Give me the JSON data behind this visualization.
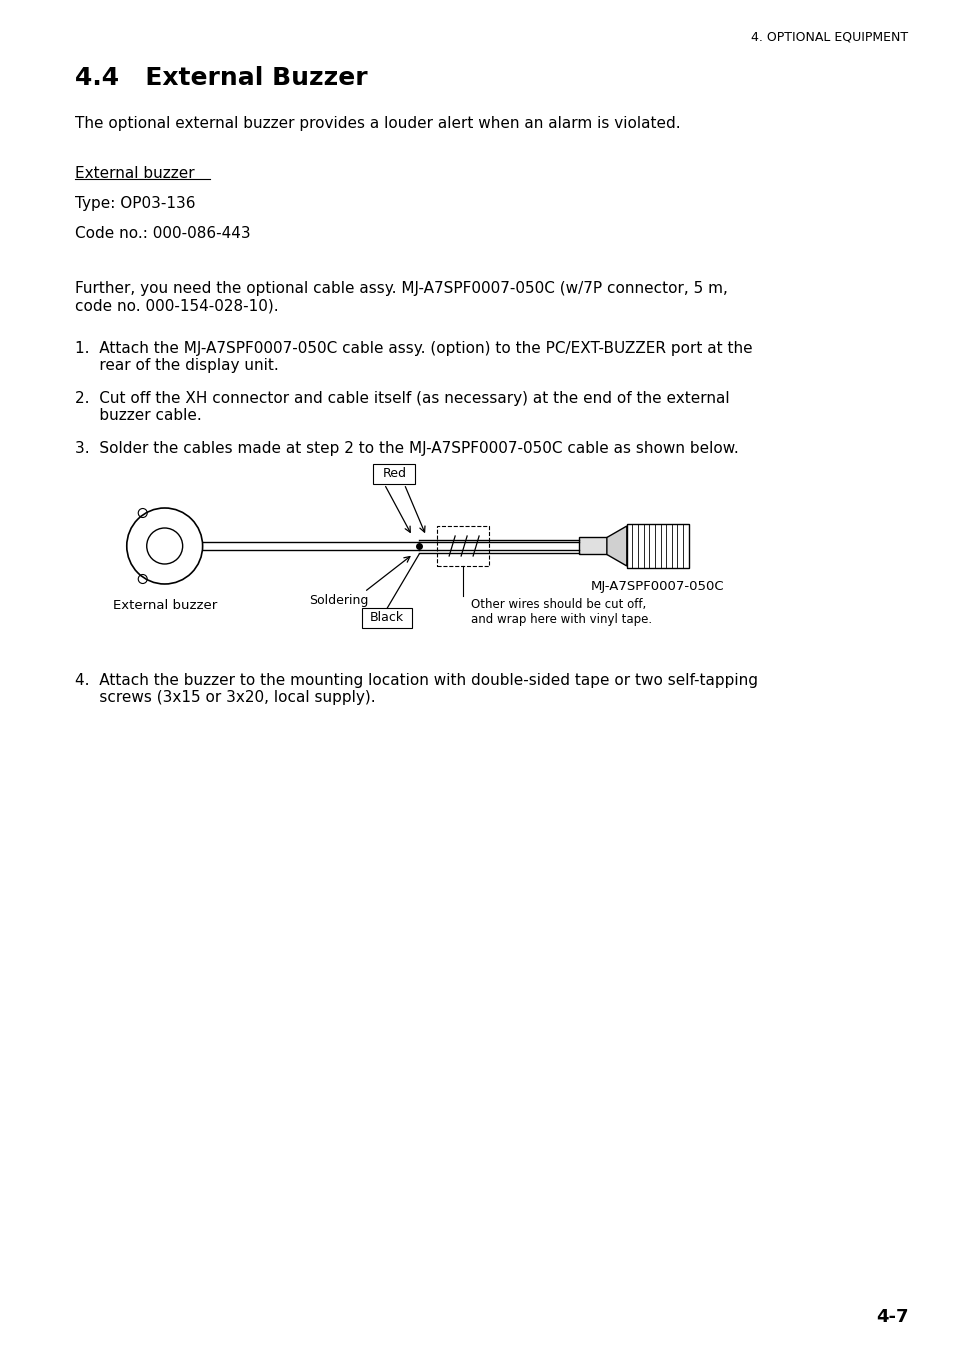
{
  "bg_color": "#ffffff",
  "header_text": "4. OPTIONAL EQUIPMENT",
  "title": "4.4   External Buzzer",
  "para1": "The optional external buzzer provides a louder alert when an alarm is violated.",
  "underline_label": "External buzzer",
  "type_line": "Type: OP03-136",
  "code_line": "Code no.: 000-086-443",
  "para2": "Further, you need the optional cable assy. MJ-A7SPF0007-050C (w/7P connector, 5 m,\ncode no. 000-154-028-10).",
  "step1": "1.  Attach the MJ-A7SPF0007-050C cable assy. (option) to the PC/EXT-BUZZER port at the\n     rear of the display unit.",
  "step2": "2.  Cut off the XH connector and cable itself (as necessary) at the end of the external\n     buzzer cable.",
  "step3": "3.  Solder the cables made at step 2 to the MJ-A7SPF0007-050C cable as shown below.",
  "step4": "4.  Attach the buzzer to the mounting location with double-sided tape or two self-tapping\n     screws (3x15 or 3x20, local supply).",
  "label_red": "Red",
  "label_soldering": "Soldering",
  "label_black": "Black",
  "label_ext_buzzer": "External buzzer",
  "label_mj": "MJ-A7SPF0007-050C",
  "label_other_wires": "Other wires should be cut off,\nand wrap here with vinyl tape.",
  "page_number": "4-7",
  "font_size_body": 11,
  "font_size_title": 18,
  "font_size_header": 9,
  "font_size_page": 13
}
